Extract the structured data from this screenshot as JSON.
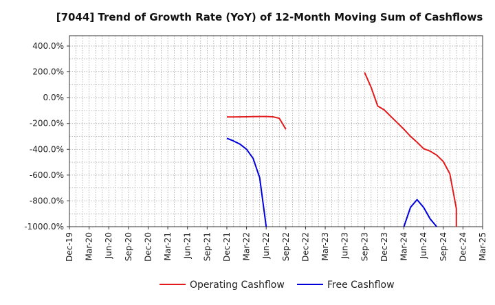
{
  "chart_data": {
    "type": "line",
    "title": "[7044]  Trend of Growth Rate (YoY) of 12-Month Moving Sum of Cashflows",
    "x_tick_labels": [
      "Dec-19",
      "Mar-20",
      "Jun-20",
      "Sep-20",
      "Dec-20",
      "Mar-21",
      "Jun-21",
      "Sep-21",
      "Dec-21",
      "Mar-22",
      "Jun-22",
      "Sep-22",
      "Dec-22",
      "Mar-23",
      "Jun-23",
      "Sep-23",
      "Dec-23",
      "Mar-24",
      "Jun-24",
      "Sep-24",
      "Dec-24",
      "Mar-25"
    ],
    "y_tick_labels": [
      "400.0%",
      "200.0%",
      "0.0%",
      "-200.0%",
      "-400.0%",
      "-600.0%",
      "-800.0%",
      "-1000.0%"
    ],
    "y_ticks": [
      400,
      200,
      0,
      -200,
      -400,
      -600,
      -800,
      -1000
    ],
    "ylim": [
      -1000,
      480
    ],
    "xlim": [
      "2019-12",
      "2025-03"
    ],
    "grid": true,
    "legend_position": "bottom",
    "series": [
      {
        "name": "Operating Cashflow",
        "color": "#e31a1c",
        "segments": [
          [
            {
              "x": "2021-12",
              "y": -150
            },
            {
              "x": "2022-01",
              "y": -150
            },
            {
              "x": "2022-02",
              "y": -149
            },
            {
              "x": "2022-03",
              "y": -148
            },
            {
              "x": "2022-04",
              "y": -147
            },
            {
              "x": "2022-05",
              "y": -146
            },
            {
              "x": "2022-06",
              "y": -146
            },
            {
              "x": "2022-07",
              "y": -148
            },
            {
              "x": "2022-08",
              "y": -160
            },
            {
              "x": "2022-09",
              "y": -245
            }
          ],
          [
            {
              "x": "2023-09",
              "y": 195
            },
            {
              "x": "2023-10",
              "y": 80
            },
            {
              "x": "2023-11",
              "y": -65
            },
            {
              "x": "2023-12",
              "y": -95
            },
            {
              "x": "2024-01",
              "y": -145
            },
            {
              "x": "2024-02",
              "y": -195
            },
            {
              "x": "2024-03",
              "y": -245
            },
            {
              "x": "2024-04",
              "y": -300
            },
            {
              "x": "2024-05",
              "y": -345
            },
            {
              "x": "2024-06",
              "y": -395
            },
            {
              "x": "2024-07",
              "y": -415
            },
            {
              "x": "2024-08",
              "y": -445
            },
            {
              "x": "2024-09",
              "y": -495
            },
            {
              "x": "2024-10",
              "y": -590
            },
            {
              "x": "2024-11",
              "y": -860
            },
            {
              "x": "2024-11",
              "y": -1000
            }
          ]
        ]
      },
      {
        "name": "Free Cashflow",
        "color": "#0000dd",
        "segments": [
          [
            {
              "x": "2021-12",
              "y": -315
            },
            {
              "x": "2022-01",
              "y": -335
            },
            {
              "x": "2022-02",
              "y": -360
            },
            {
              "x": "2022-03",
              "y": -400
            },
            {
              "x": "2022-04",
              "y": -470
            },
            {
              "x": "2022-05",
              "y": -620
            },
            {
              "x": "2022-06",
              "y": -1000
            }
          ],
          [
            {
              "x": "2024-03",
              "y": -1000
            },
            {
              "x": "2024-04",
              "y": -850
            },
            {
              "x": "2024-05",
              "y": -790
            },
            {
              "x": "2024-06",
              "y": -850
            },
            {
              "x": "2024-07",
              "y": -940
            },
            {
              "x": "2024-08",
              "y": -1000
            }
          ]
        ]
      }
    ]
  }
}
